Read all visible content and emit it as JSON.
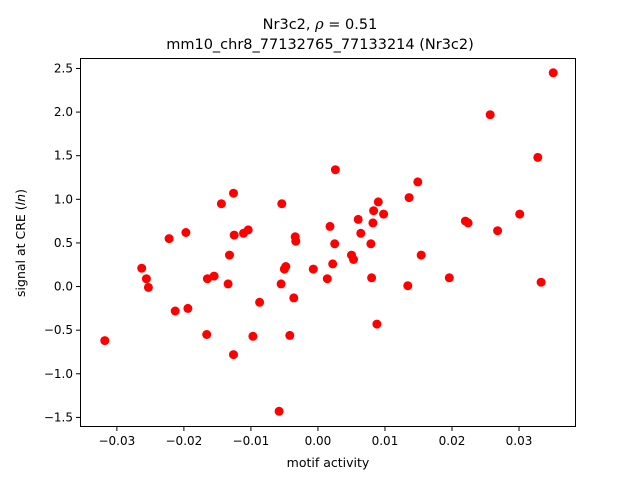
{
  "chart_data": {
    "type": "scatter",
    "title_line1_prefix": "Nr3c2, ",
    "title_line1_symbol": "ρ",
    "title_line1_suffix": " = 0.51",
    "title_line2": "mm10_chr8_77132765_77133214 (Nr3c2)",
    "xlabel": "motif activity",
    "ylabel_prefix": "signal at CRE (",
    "ylabel_italic": "ln",
    "ylabel_suffix": ")",
    "xlim": [
      -0.0355,
      0.0385
    ],
    "ylim": [
      -1.61,
      2.62
    ],
    "xticks": [
      -0.03,
      -0.02,
      -0.01,
      0.0,
      0.01,
      0.02,
      0.03
    ],
    "xtick_labels": [
      "−0.03",
      "−0.02",
      "−0.01",
      "0.00",
      "0.01",
      "0.02",
      "0.03"
    ],
    "yticks": [
      -1.5,
      -1.0,
      -0.5,
      0.0,
      0.5,
      1.0,
      1.5,
      2.0,
      2.5
    ],
    "ytick_labels": [
      "−1.5",
      "−1.0",
      "−0.5",
      "0.0",
      "0.5",
      "1.0",
      "1.5",
      "2.0",
      "2.5"
    ],
    "grid": false,
    "marker_color": "#ff0000",
    "points": [
      [
        -0.0318,
        -0.62
      ],
      [
        -0.0263,
        0.21
      ],
      [
        -0.0256,
        0.09
      ],
      [
        -0.0253,
        -0.01
      ],
      [
        -0.0222,
        0.55
      ],
      [
        -0.0213,
        -0.28
      ],
      [
        -0.0197,
        0.62
      ],
      [
        -0.0194,
        -0.25
      ],
      [
        -0.0166,
        -0.55
      ],
      [
        -0.0165,
        0.09
      ],
      [
        -0.0155,
        0.12
      ],
      [
        -0.0144,
        0.95
      ],
      [
        -0.0134,
        0.03
      ],
      [
        -0.0132,
        0.36
      ],
      [
        -0.0126,
        1.07
      ],
      [
        -0.0125,
        0.59
      ],
      [
        -0.0126,
        -0.78
      ],
      [
        -0.0111,
        0.61
      ],
      [
        -0.0104,
        0.65
      ],
      [
        -0.0097,
        -0.57
      ],
      [
        -0.0087,
        -0.18
      ],
      [
        -0.0058,
        -1.43
      ],
      [
        -0.0055,
        0.03
      ],
      [
        -0.0054,
        0.95
      ],
      [
        -0.005,
        0.2
      ],
      [
        -0.0048,
        0.23
      ],
      [
        -0.0042,
        -0.56
      ],
      [
        -0.0036,
        -0.13
      ],
      [
        -0.0034,
        0.57
      ],
      [
        -0.0033,
        0.52
      ],
      [
        -0.0007,
        0.2
      ],
      [
        0.0014,
        0.09
      ],
      [
        0.0018,
        0.69
      ],
      [
        0.0022,
        0.26
      ],
      [
        0.0025,
        0.49
      ],
      [
        0.0026,
        1.34
      ],
      [
        0.005,
        0.36
      ],
      [
        0.0053,
        0.31
      ],
      [
        0.006,
        0.77
      ],
      [
        0.0064,
        0.61
      ],
      [
        0.0079,
        0.49
      ],
      [
        0.008,
        0.1
      ],
      [
        0.0082,
        0.73
      ],
      [
        0.0083,
        0.87
      ],
      [
        0.0088,
        -0.43
      ],
      [
        0.009,
        0.97
      ],
      [
        0.0098,
        0.83
      ],
      [
        0.0134,
        0.01
      ],
      [
        0.0136,
        1.02
      ],
      [
        0.0149,
        1.2
      ],
      [
        0.0154,
        0.36
      ],
      [
        0.0196,
        0.1
      ],
      [
        0.022,
        0.75
      ],
      [
        0.0224,
        0.73
      ],
      [
        0.0257,
        1.97
      ],
      [
        0.0268,
        0.64
      ],
      [
        0.0301,
        0.83
      ],
      [
        0.0328,
        1.48
      ],
      [
        0.0333,
        0.05
      ],
      [
        0.0351,
        2.45
      ]
    ]
  }
}
